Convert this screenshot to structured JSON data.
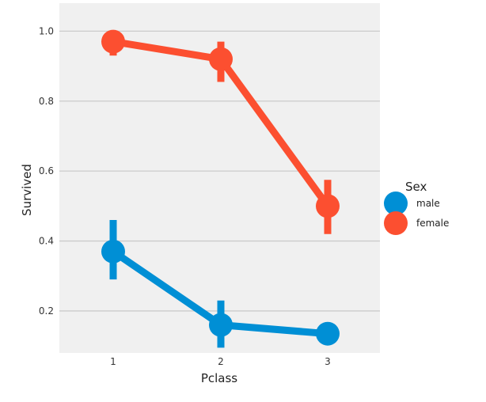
{
  "chart_data": {
    "type": "line",
    "subtype": "pointplot",
    "title": "",
    "xlabel": "Pclass",
    "ylabel": "Survived",
    "categories": [
      "1",
      "2",
      "3"
    ],
    "ylim": [
      0.08,
      1.08
    ],
    "yticks": [
      0.2,
      0.4,
      0.6,
      0.8,
      1.0
    ],
    "ytick_labels": [
      "0.2",
      "0.4",
      "0.6",
      "0.8",
      "1.0"
    ],
    "grid": true,
    "legend": {
      "title": "Sex",
      "position": "right"
    },
    "series": [
      {
        "name": "male",
        "color": "#008fd5",
        "values": [
          0.37,
          0.16,
          0.135
        ],
        "ci_low": [
          0.29,
          0.095,
          0.115
        ],
        "ci_high": [
          0.46,
          0.23,
          0.16
        ]
      },
      {
        "name": "female",
        "color": "#fc4f30",
        "values": [
          0.97,
          0.92,
          0.5
        ],
        "ci_low": [
          0.93,
          0.855,
          0.42
        ],
        "ci_high": [
          0.99,
          0.97,
          0.575
        ]
      }
    ],
    "background_color": "#f0f0f0",
    "grid_color": "#cbcbcb"
  }
}
